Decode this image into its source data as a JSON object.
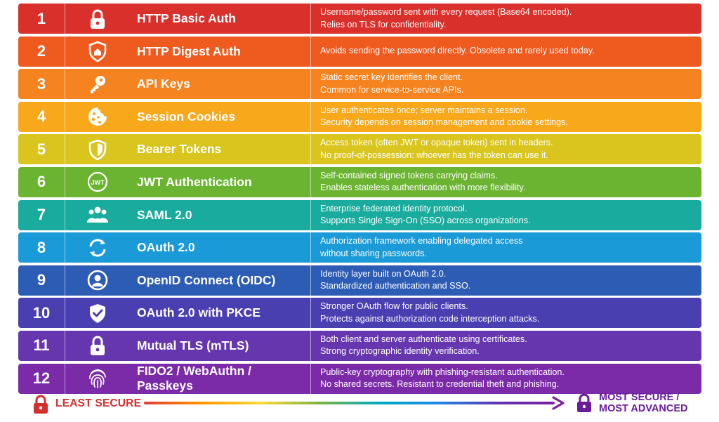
{
  "rows": [
    {
      "num": "1",
      "icon": "lock-icon",
      "name": "HTTP Basic Auth",
      "desc1": "Username/password sent with every request (Base64 encoded).",
      "desc2": "Relies on TLS for confidentiality.",
      "color": "#d9302b"
    },
    {
      "num": "2",
      "icon": "shield-house-icon",
      "name": "HTTP Digest Auth",
      "desc1": "Avoids sending the password directly. Obsolete and rarely used today.",
      "desc2": "",
      "color": "#ef5a1f"
    },
    {
      "num": "3",
      "icon": "key-icon",
      "name": "API Keys",
      "desc1": "Static secret key identifies the client.",
      "desc2": "Common for service-to-service APIs.",
      "color": "#f5831f"
    },
    {
      "num": "4",
      "icon": "cookie-icon",
      "name": "Session Cookies",
      "desc1": "User authenticates once; server maintains a session.",
      "desc2": "Security depends on session management and cookie settings.",
      "color": "#f7a81b"
    },
    {
      "num": "5",
      "icon": "shield-icon",
      "name": "Bearer Tokens",
      "desc1": "Access token (often JWT or opaque token) sent in headers.",
      "desc2": "No proof-of-possession: whoever has the token can use it.",
      "color": "#d9c51e"
    },
    {
      "num": "6",
      "icon": "jwt-badge-icon",
      "name": "JWT Authentication",
      "desc1": "Self-contained signed tokens carrying claims.",
      "desc2": "Enables stateless authentication with more flexibility.",
      "color": "#6bb431"
    },
    {
      "num": "7",
      "icon": "users-group-icon",
      "name": "SAML 2.0",
      "desc1": "Enterprise federated identity protocol.",
      "desc2": "Supports Single Sign-On (SSO) across organizations.",
      "color": "#19ab9d"
    },
    {
      "num": "8",
      "icon": "refresh-icon",
      "name": "OAuth 2.0",
      "desc1": "Authorization framework enabling delegated access",
      "desc2": "without sharing passwords.",
      "color": "#1a9ad6"
    },
    {
      "num": "9",
      "icon": "user-circle-icon",
      "name": "OpenID Connect (OIDC)",
      "desc1": "Identity layer built on OAuth 2.0.",
      "desc2": "Standardized authentication and SSO.",
      "color": "#2d5cb5"
    },
    {
      "num": "10",
      "icon": "shield-check-icon",
      "name": "OAuth 2.0 with PKCE",
      "desc1": "Stronger OAuth flow for public clients.",
      "desc2": "Protects against authorization code interception attacks.",
      "color": "#4a3fb0"
    },
    {
      "num": "11",
      "icon": "lock-icon",
      "name": "Mutual TLS (mTLS)",
      "desc1": "Both client and server authenticate using certificates.",
      "desc2": "Strong cryptographic identity verification.",
      "color": "#6536ad"
    },
    {
      "num": "12",
      "icon": "fingerprint-icon",
      "name": "FIDO2 / WebAuthn / Passkeys",
      "desc1": "Public-key cryptography with phishing-resistant authentication.",
      "desc2": "No shared secrets. Resistant to credential theft and phishing.",
      "color": "#7b2aa8"
    }
  ],
  "footer": {
    "left_label": "LEAST SECURE",
    "right_label_line1": "MOST SECURE /",
    "right_label_line2": "MOST ADVANCED",
    "left_color": "#d32f2f",
    "right_color": "#6a1b9a"
  }
}
